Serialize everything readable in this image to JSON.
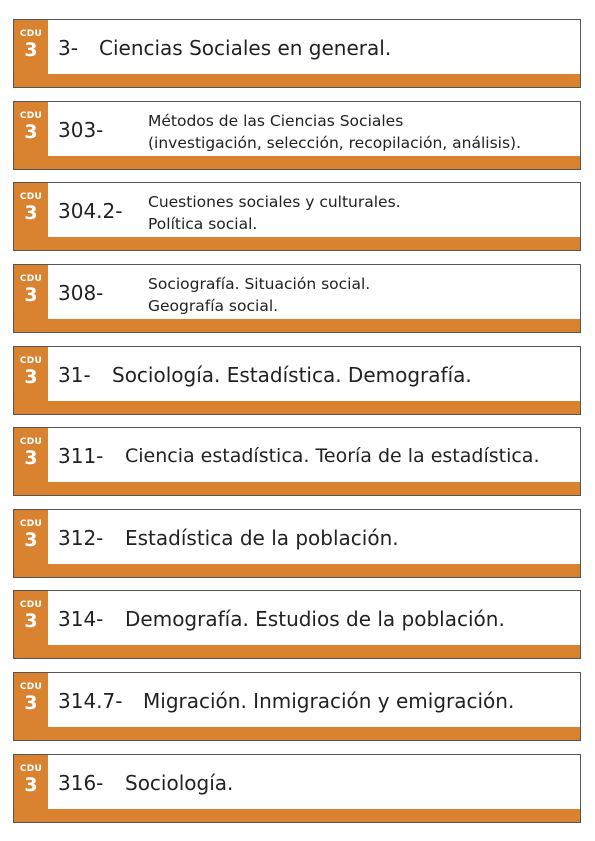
{
  "accent_color": "#d9822f",
  "tab_small_label": "CDU",
  "tab_number": "3",
  "labels": [
    {
      "code": "3-",
      "title": "Ciencias Sociales en general."
    },
    {
      "code": "303-",
      "line1": "Métodos de las Ciencias Sociales",
      "line2": "(investigación, selección, recopilación, análisis)."
    },
    {
      "code": "304.2-",
      "line1": "Cuestiones sociales y culturales.",
      "line2": "Política social."
    },
    {
      "code": "308-",
      "line1": "Sociografía. Situación social.",
      "line2": "Geografía social."
    },
    {
      "code": "31-",
      "title": "Sociología. Estadística. Demografía."
    },
    {
      "code": "311-",
      "title": "Ciencia estadística. Teoría de la estadística."
    },
    {
      "code": "312-",
      "title": "Estadística de la población."
    },
    {
      "code": "314-",
      "title": "Demografía. Estudios de la población."
    },
    {
      "code": "314.7-",
      "title": "Migración. Inmigración y emigración."
    },
    {
      "code": "316-",
      "title": "Sociología."
    }
  ]
}
